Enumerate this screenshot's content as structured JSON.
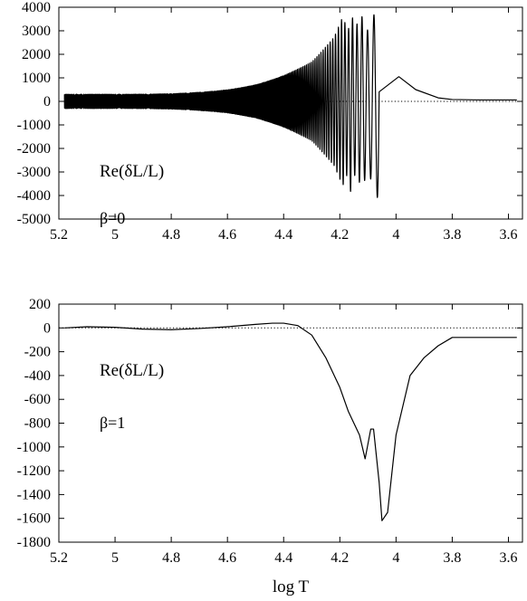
{
  "figure": {
    "xlabel": "log T"
  },
  "chart_data": [
    {
      "type": "line",
      "series_label": "Re(δL/L)",
      "annotation": "β=0",
      "xlim": [
        5.2,
        3.55
      ],
      "ylim": [
        -5000,
        4000
      ],
      "x_ticks": [
        5.2,
        5,
        4.8,
        4.6,
        4.4,
        4.2,
        4,
        3.8,
        3.6
      ],
      "x_tick_labels": [
        "5.2",
        "5",
        "4.8",
        "4.6",
        "4.4",
        "4.2",
        "4",
        "3.8",
        "3.6"
      ],
      "y_ticks": [
        4000,
        3000,
        2000,
        1000,
        0,
        -1000,
        -2000,
        -3000,
        -4000,
        -5000
      ],
      "y_tick_labels": [
        "4000",
        "3000",
        "2000",
        "1000",
        "0",
        "-1000",
        "-2000",
        "-3000",
        "-4000",
        "-5000"
      ],
      "zero_line": true,
      "points": [
        [
          5.18,
          0
        ],
        [
          5.17,
          350
        ],
        [
          5.16,
          -320
        ],
        [
          5.1,
          250
        ],
        [
          5.0,
          -300
        ],
        [
          4.9,
          380
        ],
        [
          4.8,
          -450
        ],
        [
          4.7,
          600
        ],
        [
          4.6,
          -780
        ],
        [
          4.5,
          1100
        ],
        [
          4.4,
          -1600
        ],
        [
          4.3,
          2200
        ],
        [
          4.25,
          -2900
        ],
        [
          4.22,
          3300
        ],
        [
          4.19,
          -4200
        ],
        [
          4.17,
          3400
        ],
        [
          4.16,
          -4550
        ],
        [
          4.15,
          3450
        ],
        [
          4.12,
          -3900
        ],
        [
          4.1,
          3150
        ],
        [
          4.06,
          -4350
        ],
        [
          3.99,
          1050
        ],
        [
          3.93,
          500
        ],
        [
          3.85,
          150
        ],
        [
          3.8,
          80
        ],
        [
          3.7,
          60
        ],
        [
          3.57,
          60
        ]
      ],
      "style": "oscillating, envelope grows toward low log T"
    },
    {
      "type": "line",
      "series_label": "Re(δL/L)",
      "annotation": "β=1",
      "xlim": [
        5.2,
        3.55
      ],
      "ylim": [
        -1800,
        200
      ],
      "x_ticks": [
        5.2,
        5,
        4.8,
        4.6,
        4.4,
        4.2,
        4,
        3.8,
        3.6
      ],
      "x_tick_labels": [
        "5.2",
        "5",
        "4.8",
        "4.6",
        "4.4",
        "4.2",
        "4",
        "3.8",
        "3.6"
      ],
      "y_ticks": [
        200,
        0,
        -200,
        -400,
        -600,
        -800,
        -1000,
        -1200,
        -1400,
        -1600,
        -1800
      ],
      "y_tick_labels": [
        "200",
        "0",
        "-200",
        "-400",
        "-600",
        "-800",
        "-1000",
        "-1200",
        "-1400",
        "-1600",
        "-1800"
      ],
      "zero_line": true,
      "points": [
        [
          5.18,
          0
        ],
        [
          5.1,
          10
        ],
        [
          5.0,
          5
        ],
        [
          4.9,
          -10
        ],
        [
          4.8,
          -15
        ],
        [
          4.7,
          -5
        ],
        [
          4.6,
          10
        ],
        [
          4.5,
          30
        ],
        [
          4.44,
          40
        ],
        [
          4.4,
          40
        ],
        [
          4.35,
          20
        ],
        [
          4.3,
          -60
        ],
        [
          4.25,
          -250
        ],
        [
          4.2,
          -500
        ],
        [
          4.17,
          -700
        ],
        [
          4.15,
          -800
        ],
        [
          4.13,
          -900
        ],
        [
          4.11,
          -1100
        ],
        [
          4.09,
          -850
        ],
        [
          4.08,
          -850
        ],
        [
          4.06,
          -1300
        ],
        [
          4.05,
          -1620
        ],
        [
          4.03,
          -1550
        ],
        [
          4.0,
          -900
        ],
        [
          3.95,
          -400
        ],
        [
          3.9,
          -250
        ],
        [
          3.85,
          -150
        ],
        [
          3.8,
          -80
        ],
        [
          3.7,
          -80
        ],
        [
          3.57,
          -80
        ]
      ]
    }
  ]
}
